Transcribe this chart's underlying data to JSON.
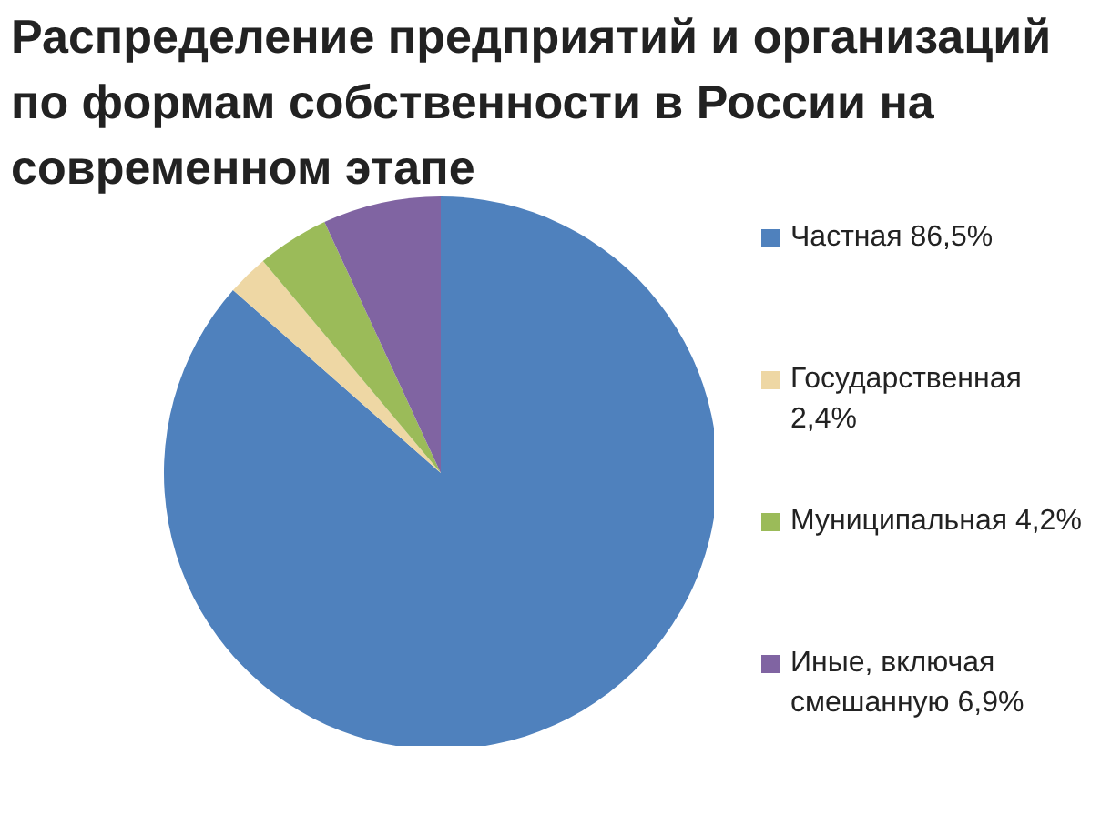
{
  "chart_data": {
    "type": "pie",
    "title": "Распределение предприятий и организаций по формам собственности в России на современном этапе",
    "categories": [
      "Частная 86,5%",
      "Государственная 2,4%",
      "Муниципальная 4,2%",
      "Иные, включая смешанную 6,9%"
    ],
    "values": [
      86.5,
      2.4,
      4.2,
      6.9
    ],
    "colors": [
      "#4f81bd",
      "#eed7a4",
      "#9bbb59",
      "#8064a2"
    ],
    "legend": "right"
  }
}
